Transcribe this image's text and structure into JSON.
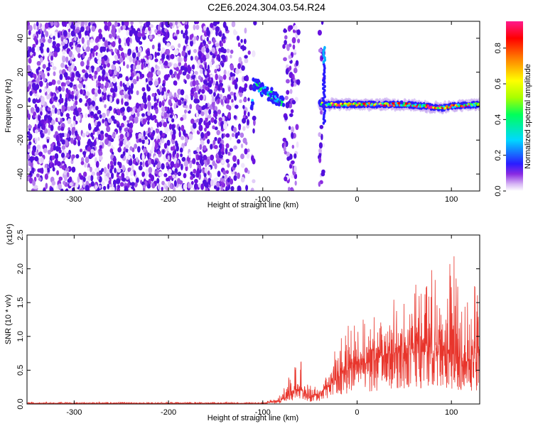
{
  "title": "C2E6.2024.304.03.54.R24",
  "chart_data": [
    {
      "type": "heatmap",
      "xlabel": "Height of straight line (km)",
      "ylabel": "Frequency (Hz)",
      "xlim": [
        -350,
        130
      ],
      "ylim": [
        -50,
        50
      ],
      "xticks": [
        -300,
        -200,
        -100,
        0,
        100
      ],
      "yticks": [
        -40,
        -20,
        0,
        20,
        40
      ],
      "colorbar": {
        "label": "Normalized spectral amplitude",
        "range": [
          0.0,
          0.95
        ],
        "ticks": [
          "0.0",
          "0.2",
          "0.4",
          "0.6",
          "0.8"
        ],
        "colormap": "rainbow (white-violet-blue-cyan-green-yellow-red-magenta)"
      },
      "features": {
        "noise_region_km": [
          -350,
          -35
        ],
        "signal_gap_km": [
          [
            -108,
            -78
          ],
          [
            -62,
            -40
          ]
        ],
        "signal_trace": {
          "x_km": [
            -110,
            -100,
            -90,
            -80,
            -40,
            -35,
            0,
            50,
            90,
            100,
            130
          ],
          "freq_hz": [
            13,
            10,
            6,
            2,
            2,
            1,
            1,
            1,
            -1,
            0,
            1
          ]
        }
      }
    },
    {
      "type": "line",
      "xlabel": "Height of straight line (km)",
      "ylabel": "SNR (10 * v/v)",
      "yscale_label": "(x10⁴)",
      "xlim": [
        -350,
        130
      ],
      "ylim": [
        0.0,
        2.5
      ],
      "xticks": [
        -300,
        -200,
        -100,
        0,
        100
      ],
      "yticks": [
        "0.0",
        "0.5",
        "1.0",
        "1.5",
        "2.0",
        "2.5"
      ],
      "series": [
        {
          "color": "#e8352c",
          "envelope_x": [
            -350,
            -100,
            -95,
            -80,
            -70,
            -60,
            -50,
            -40,
            -30,
            -20,
            -10,
            0,
            10,
            20,
            30,
            40,
            50,
            60,
            70,
            80,
            90,
            100,
            110,
            120,
            130
          ],
          "envelope_peak": [
            0.03,
            0.03,
            0.05,
            0.15,
            0.5,
            0.7,
            0.35,
            0.35,
            0.55,
            1.1,
            1.3,
            1.2,
            1.3,
            1.45,
            1.55,
            1.75,
            1.6,
            1.75,
            1.9,
            2.05,
            1.6,
            2.55,
            1.75,
            1.75,
            1.8
          ],
          "envelope_base": [
            0.01,
            0.01,
            0.02,
            0.05,
            0.15,
            0.2,
            0.1,
            0.15,
            0.25,
            0.4,
            0.5,
            0.55,
            0.6,
            0.65,
            0.7,
            0.75,
            0.75,
            0.75,
            0.75,
            0.8,
            0.7,
            0.75,
            0.65,
            0.6,
            0.65
          ]
        }
      ]
    }
  ]
}
